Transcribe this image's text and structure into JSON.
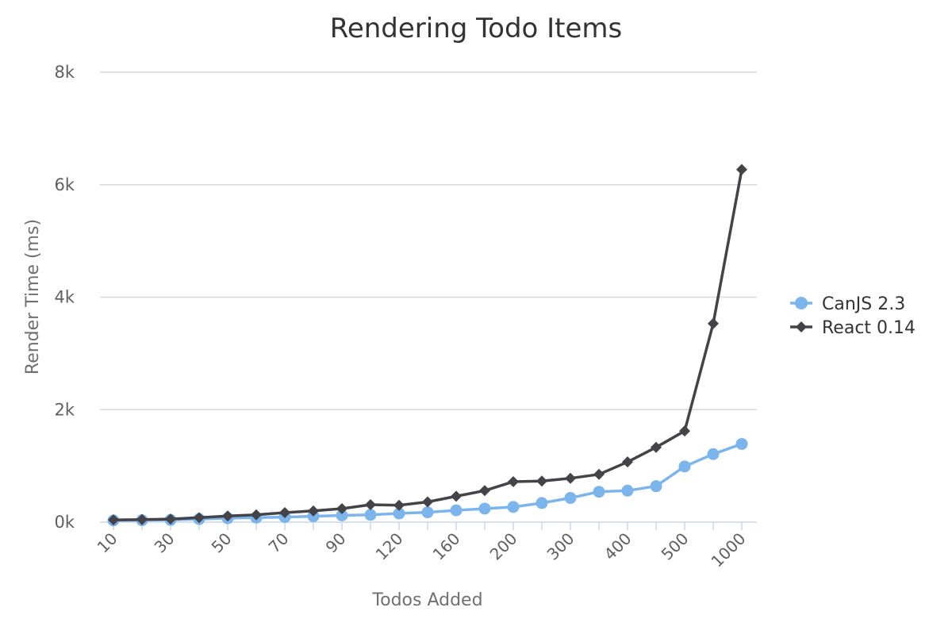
{
  "chart_data": {
    "type": "line",
    "title": "Rendering Todo Items",
    "xlabel": "Todos Added",
    "ylabel": "Render Time (ms)",
    "ylim": [
      0,
      8000
    ],
    "yticks": [
      "0k",
      "2k",
      "4k",
      "6k",
      "8k"
    ],
    "ytick_values": [
      0,
      2000,
      4000,
      6000,
      8000
    ],
    "grid": true,
    "legend_position": "right",
    "categories": [
      "10",
      "20",
      "30",
      "40",
      "50",
      "60",
      "70",
      "80",
      "90",
      "100",
      "120",
      "140",
      "160",
      "180",
      "200",
      "250",
      "300",
      "350",
      "400",
      "450",
      "500",
      "750",
      "1000"
    ],
    "xtick_labels": [
      "10",
      "30",
      "50",
      "70",
      "90",
      "120",
      "160",
      "200",
      "300",
      "400",
      "500",
      "1000"
    ],
    "series": [
      {
        "name": "CanJS 2.3",
        "color": "#7cb5ec",
        "marker": "circle",
        "values": [
          30,
          35,
          40,
          55,
          70,
          80,
          90,
          105,
          120,
          130,
          155,
          175,
          210,
          240,
          270,
          340,
          430,
          540,
          560,
          640,
          990,
          1210,
          1390
        ]
      },
      {
        "name": "React 0.14",
        "color": "#434348",
        "marker": "diamond",
        "values": [
          40,
          45,
          55,
          80,
          110,
          130,
          170,
          200,
          240,
          310,
          300,
          360,
          460,
          560,
          720,
          730,
          780,
          850,
          1070,
          1330,
          1620,
          3530,
          6270
        ]
      }
    ]
  }
}
